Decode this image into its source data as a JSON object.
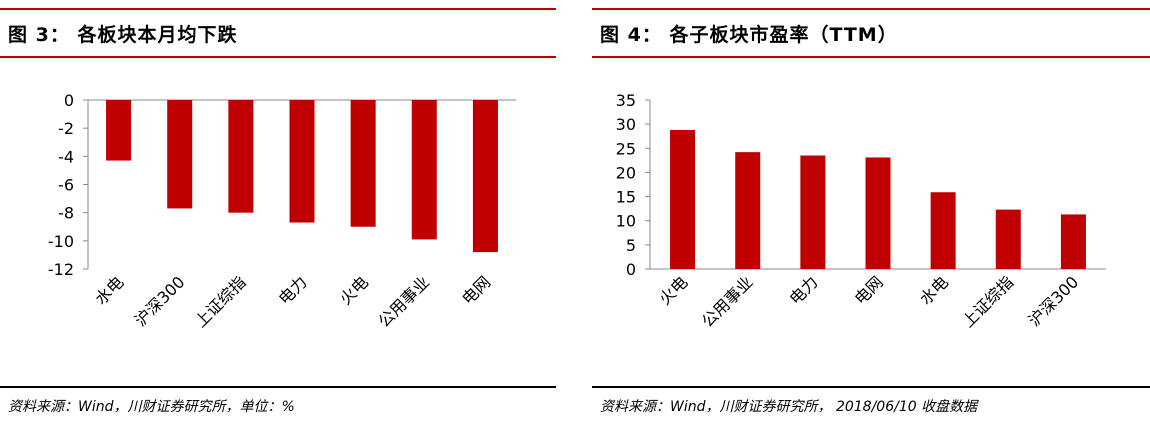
{
  "figures": [
    {
      "title": "图 3：  各板块本月均下跌",
      "source": "资料来源：Wind，川财证券研究所，单位：%",
      "chart_data": {
        "type": "bar",
        "title": "图 3：  各板块本月均下跌",
        "xlabel": "",
        "ylabel": "",
        "categories": [
          "水电",
          "沪深300",
          "上证综指",
          "电力",
          "火电",
          "公用事业",
          "电网"
        ],
        "values": [
          -4.3,
          -7.7,
          -8.0,
          -8.7,
          -9.0,
          -9.9,
          -10.8
        ],
        "ylim": [
          -12,
          0
        ],
        "yticks": [
          0,
          -2,
          -4,
          -6,
          -8,
          -10,
          -12
        ],
        "grid": false,
        "bar_color": "#c00000"
      }
    },
    {
      "title": "图 4：  各子板块市盈率（TTM）",
      "source": "资料来源：Wind，川财证券研究所，  2018/06/10 收盘数据",
      "chart_data": {
        "type": "bar",
        "title": "图 4：  各子板块市盈率（TTM）",
        "xlabel": "",
        "ylabel": "",
        "categories": [
          "火电",
          "公用事业",
          "电力",
          "电网",
          "水电",
          "上证综指",
          "沪深300"
        ],
        "values": [
          28.8,
          24.2,
          23.5,
          23.1,
          15.9,
          12.3,
          11.3
        ],
        "ylim": [
          0,
          35
        ],
        "yticks": [
          0,
          5,
          10,
          15,
          20,
          25,
          30,
          35
        ],
        "grid": false,
        "bar_color": "#c00000"
      }
    }
  ]
}
